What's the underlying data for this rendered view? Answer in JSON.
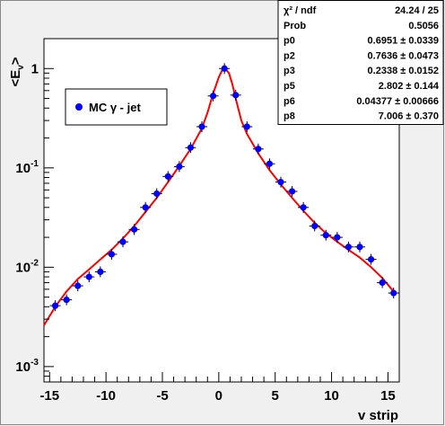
{
  "chart_data": {
    "type": "scatter",
    "title": "",
    "xlabel": "v strip",
    "ylabel": "<E_v>",
    "xlim": [
      -15.5,
      16
    ],
    "ylim": [
      0.0007,
      2.0
    ],
    "yscale": "log",
    "x_ticks": [
      "-15",
      "-10",
      "-5",
      "0",
      "5",
      "10",
      "15"
    ],
    "y_ticks": [
      {
        "mant": "10",
        "exp": "-3",
        "value": 0.001
      },
      {
        "mant": "10",
        "exp": "-2",
        "value": 0.01
      },
      {
        "mant": "10",
        "exp": "-1",
        "value": 0.1
      },
      {
        "mant": "1",
        "exp": "",
        "value": 1
      }
    ],
    "grid": false,
    "legend": {
      "position": "top-left",
      "label": "MC γ - jet"
    },
    "colors": {
      "points": "#0000ff",
      "fit": "#ff0000",
      "frame": "#000000",
      "plot_bg": "#ffffff",
      "canvas_bg": "#f0f0f0"
    },
    "series": [
      {
        "name": "MC γ - jet",
        "x": [
          -14.5,
          -13.5,
          -12.5,
          -11.5,
          -10.5,
          -9.5,
          -8.5,
          -7.5,
          -6.5,
          -5.5,
          -4.5,
          -3.5,
          -2.5,
          -1.5,
          -0.5,
          0.5,
          1.5,
          2.5,
          3.5,
          4.5,
          5.5,
          6.5,
          7.5,
          8.5,
          9.5,
          10.5,
          11.5,
          12.5,
          13.5,
          14.5,
          15.5
        ],
        "y": [
          0.0041,
          0.0047,
          0.0065,
          0.008,
          0.009,
          0.0135,
          0.018,
          0.024,
          0.04,
          0.055,
          0.082,
          0.103,
          0.16,
          0.26,
          0.53,
          1.0,
          0.54,
          0.26,
          0.155,
          0.11,
          0.072,
          0.058,
          0.04,
          0.026,
          0.021,
          0.02,
          0.016,
          0.016,
          0.012,
          0.007,
          0.0055
        ]
      }
    ],
    "fit": {
      "name": "fit",
      "x": [
        -15.5,
        -14.5,
        -13.5,
        -12.5,
        -11.5,
        -10.5,
        -9.5,
        -8.5,
        -7.5,
        -6.5,
        -5.5,
        -4.5,
        -3.5,
        -2.5,
        -1.5,
        -1.0,
        -0.5,
        0.0,
        0.3,
        0.6,
        0.9,
        1.2,
        1.5,
        2.0,
        2.5,
        3.5,
        4.5,
        5.5,
        6.5,
        7.5,
        8.5,
        9.5,
        10.5,
        11.5,
        12.5,
        13.5,
        14.5,
        15.5
      ],
      "y": [
        0.0026,
        0.004,
        0.0057,
        0.0076,
        0.0095,
        0.012,
        0.015,
        0.0195,
        0.026,
        0.036,
        0.05,
        0.072,
        0.105,
        0.155,
        0.25,
        0.36,
        0.56,
        0.82,
        0.96,
        0.99,
        0.9,
        0.7,
        0.5,
        0.3,
        0.22,
        0.14,
        0.095,
        0.068,
        0.05,
        0.037,
        0.028,
        0.022,
        0.018,
        0.015,
        0.0125,
        0.01,
        0.0078,
        0.0057
      ]
    },
    "stats": [
      {
        "label": "χ² / ndf",
        "value": "24.24 / 25"
      },
      {
        "label": "Prob",
        "value": "0.5056"
      },
      {
        "label": "p0",
        "value": "0.6951 ± 0.0339"
      },
      {
        "label": "p2",
        "value": "0.7636 ± 0.0473"
      },
      {
        "label": "p3",
        "value": "0.2338 ± 0.0152"
      },
      {
        "label": "p5",
        "value": "2.802 ± 0.144"
      },
      {
        "label": "p6",
        "value": "0.04377 ± 0.00666"
      },
      {
        "label": "p8",
        "value": "7.006 ± 0.370"
      }
    ]
  }
}
